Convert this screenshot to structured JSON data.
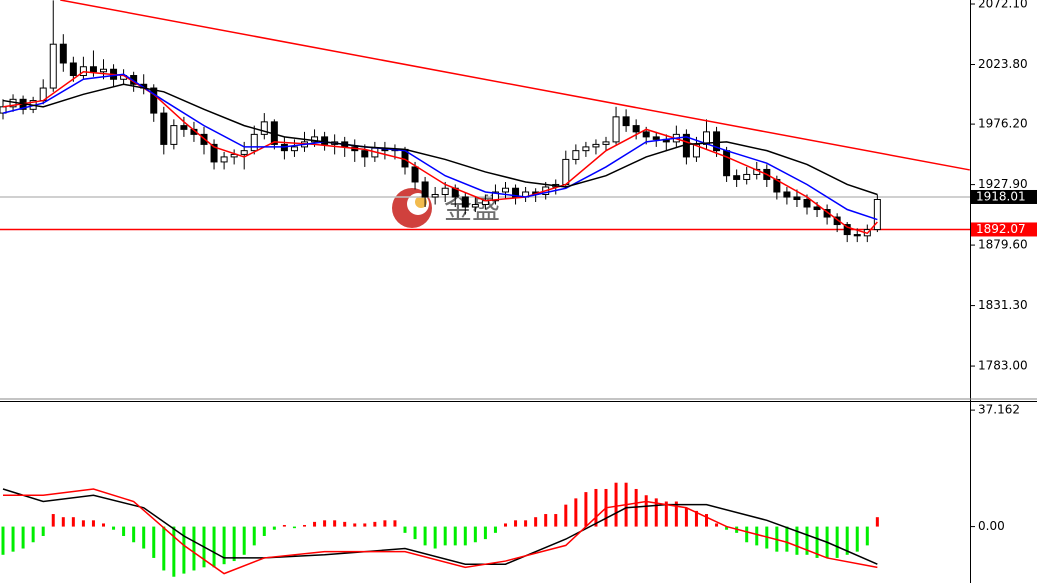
{
  "chart_data": [
    {
      "type": "candlestick",
      "ohlc": [
        [
          1985,
          1996,
          1980,
          1990
        ],
        [
          1990,
          2000,
          1986,
          1996
        ],
        [
          1996,
          1999,
          1984,
          1988
        ],
        [
          1988,
          1998,
          1985,
          1995
        ],
        [
          1995,
          2012,
          1992,
          2005
        ],
        [
          2005,
          2075,
          2002,
          2040
        ],
        [
          2040,
          2048,
          2018,
          2025
        ],
        [
          2025,
          2030,
          2010,
          2015
        ],
        [
          2015,
          2030,
          2012,
          2022
        ],
        [
          2022,
          2035,
          2014,
          2018
        ],
        [
          2018,
          2028,
          2012,
          2020
        ],
        [
          2020,
          2024,
          2006,
          2012
        ],
        [
          2012,
          2020,
          2008,
          2015
        ],
        [
          2015,
          2018,
          2002,
          2008
        ],
        [
          2008,
          2016,
          2000,
          2005
        ],
        [
          2005,
          2008,
          1978,
          1985
        ],
        [
          1985,
          1990,
          1952,
          1960
        ],
        [
          1960,
          1980,
          1956,
          1975
        ],
        [
          1975,
          1982,
          1966,
          1972
        ],
        [
          1972,
          1978,
          1962,
          1968
        ],
        [
          1968,
          1974,
          1952,
          1960
        ],
        [
          1960,
          1964,
          1940,
          1946
        ],
        [
          1946,
          1954,
          1940,
          1950
        ],
        [
          1950,
          1956,
          1944,
          1952
        ],
        [
          1952,
          1962,
          1940,
          1955
        ],
        [
          1955,
          1975,
          1952,
          1968
        ],
        [
          1968,
          1985,
          1964,
          1978
        ],
        [
          1978,
          1980,
          1956,
          1960
        ],
        [
          1960,
          1966,
          1948,
          1955
        ],
        [
          1955,
          1964,
          1950,
          1958
        ],
        [
          1958,
          1970,
          1954,
          1962
        ],
        [
          1962,
          1972,
          1958,
          1966
        ],
        [
          1966,
          1970,
          1955,
          1960
        ],
        [
          1960,
          1968,
          1952,
          1962
        ],
        [
          1962,
          1966,
          1950,
          1958
        ],
        [
          1958,
          1964,
          1946,
          1955
        ],
        [
          1955,
          1960,
          1942,
          1950
        ],
        [
          1950,
          1962,
          1946,
          1957
        ],
        [
          1957,
          1962,
          1948,
          1955
        ],
        [
          1955,
          1960,
          1948,
          1956
        ],
        [
          1956,
          1958,
          1936,
          1942
        ],
        [
          1942,
          1946,
          1924,
          1930
        ],
        [
          1930,
          1934,
          1910,
          1918
        ],
        [
          1918,
          1926,
          1912,
          1920
        ],
        [
          1920,
          1930,
          1914,
          1925
        ],
        [
          1925,
          1928,
          1910,
          1918
        ],
        [
          1918,
          1922,
          1904,
          1910
        ],
        [
          1910,
          1918,
          1906,
          1912
        ],
        [
          1912,
          1920,
          1908,
          1915
        ],
        [
          1915,
          1928,
          1912,
          1922
        ],
        [
          1922,
          1930,
          1916,
          1925
        ],
        [
          1925,
          1928,
          1912,
          1918
        ],
        [
          1918,
          1926,
          1914,
          1922
        ],
        [
          1922,
          1925,
          1914,
          1920
        ],
        [
          1920,
          1930,
          1916,
          1926
        ],
        [
          1926,
          1932,
          1920,
          1928
        ],
        [
          1928,
          1955,
          1925,
          1948
        ],
        [
          1948,
          1960,
          1944,
          1955
        ],
        [
          1955,
          1962,
          1950,
          1958
        ],
        [
          1958,
          1964,
          1952,
          1960
        ],
        [
          1960,
          1966,
          1955,
          1962
        ],
        [
          1962,
          1990,
          1960,
          1982
        ],
        [
          1982,
          1988,
          1970,
          1975
        ],
        [
          1975,
          1980,
          1964,
          1970
        ],
        [
          1970,
          1974,
          1960,
          1966
        ],
        [
          1966,
          1970,
          1958,
          1964
        ],
        [
          1964,
          1968,
          1955,
          1962
        ],
        [
          1962,
          1975,
          1958,
          1968
        ],
        [
          1968,
          1972,
          1944,
          1950
        ],
        [
          1950,
          1966,
          1946,
          1960
        ],
        [
          1960,
          1980,
          1956,
          1970
        ],
        [
          1970,
          1974,
          1950,
          1955
        ],
        [
          1955,
          1958,
          1930,
          1935
        ],
        [
          1935,
          1940,
          1926,
          1932
        ],
        [
          1932,
          1942,
          1928,
          1936
        ],
        [
          1936,
          1946,
          1932,
          1940
        ],
        [
          1940,
          1944,
          1926,
          1932
        ],
        [
          1932,
          1935,
          1916,
          1922
        ],
        [
          1922,
          1926,
          1912,
          1918
        ],
        [
          1918,
          1924,
          1910,
          1916
        ],
        [
          1916,
          1920,
          1904,
          1910
        ],
        [
          1910,
          1914,
          1902,
          1908
        ],
        [
          1908,
          1912,
          1896,
          1902
        ],
        [
          1902,
          1905,
          1890,
          1896
        ],
        [
          1896,
          1898,
          1882,
          1888
        ],
        [
          1888,
          1893,
          1882,
          1887
        ],
        [
          1887,
          1896,
          1882,
          1892
        ],
        [
          1892,
          1920,
          1890,
          1916
        ]
      ],
      "series": [
        {
          "color": "#ff0000",
          "x": [
            0,
            4,
            8,
            12,
            15,
            18,
            21,
            24,
            27,
            31,
            36,
            40,
            44,
            48,
            52,
            56,
            60,
            64,
            68,
            72,
            76,
            80,
            84,
            86,
            87
          ],
          "values": [
            1990,
            1995,
            2018,
            2015,
            2000,
            1978,
            1958,
            1950,
            1962,
            1960,
            1956,
            1948,
            1928,
            1915,
            1918,
            1928,
            1955,
            1972,
            1962,
            1950,
            1936,
            1918,
            1894,
            1889,
            1898
          ]
        },
        {
          "color": "#0000ff",
          "x": [
            0,
            4,
            8,
            12,
            16,
            20,
            24,
            28,
            32,
            36,
            40,
            44,
            48,
            52,
            56,
            60,
            64,
            68,
            72,
            76,
            80,
            84,
            87
          ],
          "values": [
            1985,
            1993,
            2012,
            2016,
            1995,
            1975,
            1958,
            1958,
            1962,
            1958,
            1955,
            1935,
            1922,
            1918,
            1925,
            1942,
            1962,
            1966,
            1955,
            1945,
            1928,
            1908,
            1900
          ]
        },
        {
          "color": "#000000",
          "x": [
            0,
            4,
            8,
            12,
            16,
            20,
            24,
            28,
            32,
            36,
            40,
            44,
            48,
            52,
            56,
            60,
            64,
            68,
            72,
            76,
            80,
            84,
            87
          ],
          "values": [
            1995,
            1990,
            2000,
            2008,
            2002,
            1988,
            1975,
            1966,
            1962,
            1958,
            1956,
            1948,
            1938,
            1930,
            1926,
            1935,
            1950,
            1960,
            1962,
            1955,
            1944,
            1928,
            1920
          ]
        }
      ],
      "trendline": {
        "color": "#ff0000",
        "x": [
          5.7,
          96.2
        ],
        "values": [
          2075.3,
          1939.6
        ]
      },
      "levels": [
        {
          "value": 1918.01,
          "color": "#000000"
        },
        {
          "value": 1892.07,
          "color": "#ff0000"
        }
      ],
      "ylim": [
        1757.5,
        2075.3
      ],
      "yticks": [
        {
          "value": 2072.1,
          "label": "2072.10"
        },
        {
          "value": 2023.8,
          "label": "2023.80"
        },
        {
          "value": 1976.2,
          "label": "1976.20"
        },
        {
          "value": 1927.9,
          "label": "1927.90"
        },
        {
          "value": 1879.6,
          "label": "1879.60"
        },
        {
          "value": 1831.3,
          "label": "1831.30"
        },
        {
          "value": 1783,
          "label": "1783.00"
        }
      ],
      "watermark": "金盛"
    },
    {
      "type": "macd",
      "values": [
        -9,
        -8,
        -7,
        -5,
        -3,
        4,
        3,
        3,
        2,
        2,
        1,
        -1,
        -3,
        -5,
        -7,
        -10,
        -14,
        -16,
        -15,
        -14,
        -13,
        -13,
        -12,
        -11,
        -9,
        -6,
        -3,
        -1,
        0.5,
        -0.5,
        0.5,
        1.5,
        2,
        2,
        1.5,
        1,
        1,
        1.5,
        2,
        2,
        -2,
        -4,
        -6,
        -7,
        -6,
        -6,
        -6,
        -5,
        -4,
        -2,
        1,
        2,
        2,
        3,
        4,
        4,
        7,
        9,
        11,
        12,
        12,
        14,
        14,
        12,
        10,
        9,
        8,
        8,
        6,
        5,
        4,
        1,
        -1,
        -2,
        -5,
        -6,
        -7,
        -8,
        -8,
        -9,
        -9,
        -10,
        -10,
        -10,
        -9,
        -8,
        -6,
        3
      ],
      "up_color": "#ff0000",
      "down_color": "#00ee00",
      "series": [
        {
          "color": "#000000",
          "x": [
            0,
            4,
            9,
            14,
            18,
            22,
            26,
            32,
            40,
            46,
            50,
            56,
            62,
            66,
            70,
            76,
            82,
            87
          ],
          "values": [
            12,
            8,
            10,
            6,
            -3,
            -10,
            -10,
            -9,
            -7,
            -12,
            -12,
            -4,
            6,
            7,
            7,
            2,
            -5,
            -12
          ]
        },
        {
          "color": "#ff0000",
          "x": [
            0,
            4,
            9,
            13,
            18,
            22,
            26,
            32,
            40,
            46,
            50,
            56,
            60,
            64,
            68,
            72,
            78,
            82,
            87
          ],
          "values": [
            10,
            10,
            12,
            8,
            -6,
            -15,
            -10,
            -8,
            -8,
            -13,
            -11,
            -6,
            6,
            8,
            6,
            0,
            -5,
            -10,
            -13
          ]
        }
      ],
      "ylim": [
        -18,
        39.75
      ],
      "yticks": [
        37.162,
        {
          "value": 0,
          "label": "0.00"
        }
      ]
    }
  ]
}
